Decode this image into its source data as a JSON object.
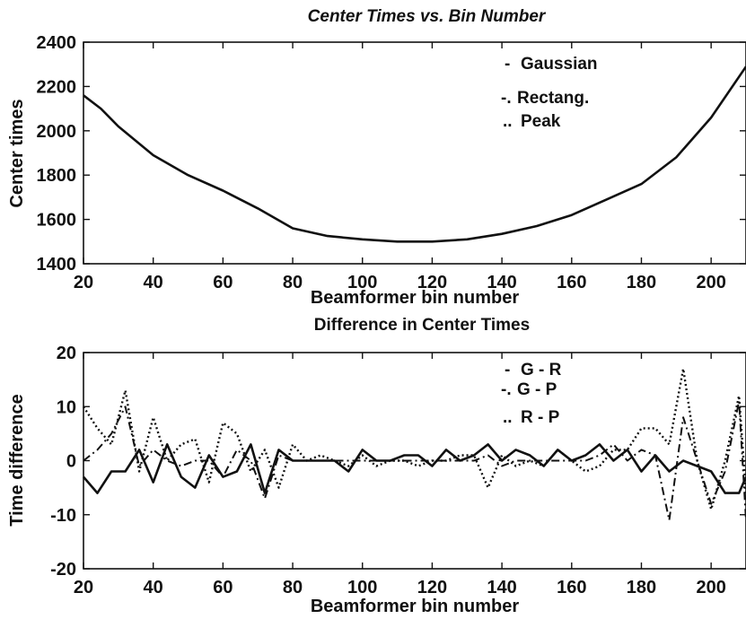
{
  "chart_data": [
    {
      "type": "line",
      "title": "Center Times vs. Bin Number",
      "xlabel": "Beamformer bin number",
      "ylabel": "Center times",
      "xlim": [
        20,
        210
      ],
      "ylim": [
        1400,
        2400
      ],
      "xticks": [
        20,
        40,
        60,
        80,
        100,
        120,
        140,
        160,
        180,
        200
      ],
      "yticks": [
        1400,
        1600,
        1800,
        2000,
        2200,
        2400
      ],
      "grid": false,
      "legend_position": "top-right",
      "legend": [
        {
          "marker": "-",
          "label": "Gaussian"
        },
        {
          "marker": "-.",
          "label": "Rectang."
        },
        {
          "marker": "..",
          "label": "Peak"
        }
      ],
      "series": [
        {
          "style": "solid",
          "x": [
            20,
            25,
            30,
            40,
            50,
            60,
            70,
            80,
            90,
            100,
            110,
            120,
            130,
            140,
            150,
            160,
            170,
            180,
            190,
            200,
            210
          ],
          "values": [
            2160,
            2100,
            2020,
            1890,
            1800,
            1730,
            1650,
            1560,
            1525,
            1510,
            1500,
            1500,
            1510,
            1535,
            1570,
            1620,
            1690,
            1760,
            1880,
            2060,
            2290
          ]
        }
      ]
    },
    {
      "type": "line",
      "title": "Difference in Center Times",
      "xlabel": "Beamformer bin number",
      "ylabel": "Time difference",
      "xlim": [
        20,
        210
      ],
      "ylim": [
        -20,
        20
      ],
      "xticks": [
        20,
        40,
        60,
        80,
        100,
        120,
        140,
        160,
        180,
        200
      ],
      "yticks": [
        -20,
        -10,
        0,
        10,
        20
      ],
      "grid": false,
      "legend_position": "top-right",
      "legend": [
        {
          "marker": "-",
          "label": "G - R"
        },
        {
          "marker": "-.",
          "label": "G - P"
        },
        {
          "marker": "..",
          "label": "R - P"
        }
      ],
      "series": [
        {
          "style": "solid",
          "x": [
            20,
            24,
            28,
            32,
            36,
            40,
            44,
            48,
            52,
            56,
            60,
            64,
            68,
            72,
            76,
            80,
            84,
            88,
            92,
            96,
            100,
            104,
            108,
            112,
            116,
            120,
            124,
            128,
            132,
            136,
            140,
            144,
            148,
            152,
            156,
            160,
            164,
            168,
            172,
            176,
            180,
            184,
            188,
            192,
            196,
            200,
            204,
            208,
            210
          ],
          "values": [
            -3,
            -6,
            -2,
            -2,
            2,
            -4,
            3,
            -3,
            -5,
            1,
            -3,
            -2,
            3,
            -6,
            2,
            0,
            0,
            0,
            0,
            -2,
            2,
            0,
            0,
            1,
            1,
            -1,
            2,
            0,
            1,
            3,
            0,
            2,
            1,
            -1,
            2,
            0,
            1,
            3,
            0,
            2,
            -2,
            1,
            -2,
            0,
            -1,
            -2,
            -6,
            -6,
            -3
          ]
        },
        {
          "style": "dashdot",
          "x": [
            20,
            24,
            28,
            32,
            36,
            40,
            44,
            48,
            52,
            56,
            60,
            64,
            68,
            72,
            76,
            80,
            84,
            88,
            92,
            96,
            100,
            104,
            108,
            112,
            116,
            120,
            124,
            128,
            132,
            136,
            140,
            144,
            148,
            152,
            156,
            160,
            164,
            168,
            172,
            176,
            180,
            184,
            188,
            192,
            196,
            200,
            204,
            208,
            210
          ],
          "values": [
            0,
            2,
            5,
            10,
            -1,
            2,
            0,
            -1,
            0,
            0,
            -3,
            2,
            0,
            -7,
            1,
            0,
            0,
            0,
            0,
            0,
            0,
            0,
            0,
            0,
            0,
            0,
            0,
            0,
            0,
            1,
            -1,
            0,
            0,
            0,
            0,
            0,
            0,
            1,
            3,
            0,
            2,
            1,
            -11,
            8,
            0,
            -8,
            -2,
            11,
            -11
          ]
        },
        {
          "style": "dotted",
          "x": [
            20,
            24,
            28,
            32,
            36,
            40,
            44,
            48,
            52,
            56,
            60,
            64,
            68,
            72,
            76,
            80,
            84,
            88,
            92,
            96,
            100,
            104,
            108,
            112,
            116,
            120,
            124,
            128,
            132,
            136,
            140,
            144,
            148,
            152,
            156,
            160,
            164,
            168,
            172,
            176,
            180,
            184,
            188,
            192,
            196,
            200,
            204,
            208,
            210
          ],
          "values": [
            10,
            6,
            3,
            13,
            -2,
            8,
            0,
            3,
            4,
            -4,
            7,
            5,
            -2,
            2,
            -5,
            3,
            0,
            1,
            0,
            -1,
            1,
            -1,
            0,
            0,
            -1,
            0,
            0,
            1,
            1,
            -5,
            1,
            -1,
            0,
            -1,
            2,
            0,
            -2,
            -1,
            2,
            2,
            6,
            6,
            3,
            17,
            0,
            -9,
            0,
            12,
            -6
          ]
        }
      ]
    }
  ]
}
